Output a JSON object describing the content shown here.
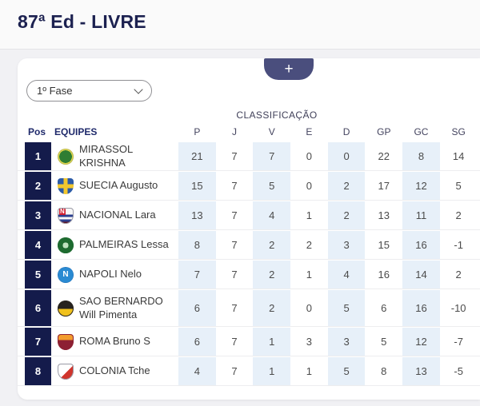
{
  "page": {
    "title": "87ª Ed - LIVRE"
  },
  "toolbar": {
    "add_button_label": "+",
    "phase_select_value": "1º Fase"
  },
  "table": {
    "caption": "CLASSIFICAÇÃO",
    "columns": [
      "Pos",
      "EQUIPES",
      "P",
      "J",
      "V",
      "E",
      "D",
      "GP",
      "GC",
      "SG"
    ],
    "rows": [
      {
        "pos": "1",
        "team": "MIRASSOL KRISHNA",
        "stats": [
          "21",
          "7",
          "7",
          "0",
          "0",
          "22",
          "8",
          "14"
        ],
        "crest": {
          "shape": "circle",
          "css_background": "radial-gradient(circle at 50% 50%, #2f7d33 0 56%, #e3d94b 56% 100%)",
          "border": "#b9b95a"
        }
      },
      {
        "pos": "2",
        "team": "SUECIA Augusto",
        "stats": [
          "15",
          "7",
          "5",
          "0",
          "2",
          "17",
          "12",
          "5"
        ],
        "crest": {
          "shape": "shield",
          "css_background": "linear-gradient(to right, rgba(0,0,0,0) 0 38%, #f2c72e 38% 62%, rgba(0,0,0,0) 62%), linear-gradient(to bottom, rgba(0,0,0,0) 0 38%, #f2c72e 38% 62%, rgba(0,0,0,0) 62%), #2c5ba8"
        }
      },
      {
        "pos": "3",
        "team": "NACIONAL Lara",
        "stats": [
          "13",
          "7",
          "4",
          "1",
          "2",
          "13",
          "11",
          "2"
        ],
        "crest": {
          "shape": "shield",
          "css_background": "linear-gradient(to bottom, #f7f7f7 0 42%, #2b3f8f 42% 58%, #f7f7f7 58% 72%, #2b3f8f 72% 88%, #5d1020 88%)",
          "border": "#9a9aa6",
          "letter": "N",
          "letter_color": "#ffffff",
          "letter_bg": "#d01e2f"
        }
      },
      {
        "pos": "4",
        "team": "PALMEIRAS Lessa",
        "stats": [
          "8",
          "7",
          "2",
          "2",
          "3",
          "15",
          "16",
          "-1"
        ],
        "crest": {
          "shape": "circle",
          "css_background": "radial-gradient(circle at 50% 50%, #bfe3bf 0 26%, #1e6b30 26%)",
          "border": "#1e6b30"
        }
      },
      {
        "pos": "5",
        "team": "NAPOLI Nelo",
        "stats": [
          "7",
          "7",
          "2",
          "1",
          "4",
          "16",
          "14",
          "2"
        ],
        "crest": {
          "shape": "circle",
          "css_background": "radial-gradient(circle at 50% 50%, #2a8ad2 0 68%, #1460a8 68%)",
          "letter": "N",
          "letter_color": "#ffffff"
        }
      },
      {
        "pos": "6",
        "team": "SAO BERNARDO Will Pimenta",
        "stats": [
          "6",
          "7",
          "2",
          "0",
          "5",
          "6",
          "16",
          "-10"
        ],
        "crest": {
          "shape": "circle",
          "css_background": "linear-gradient(to bottom, #26221f 0 52%, #f0c11c 52%)",
          "border": "#26221f"
        }
      },
      {
        "pos": "7",
        "team": "ROMA Bruno S",
        "stats": [
          "6",
          "7",
          "1",
          "3",
          "3",
          "5",
          "12",
          "-7"
        ],
        "crest": {
          "shape": "shield",
          "css_background": "linear-gradient(to bottom, #f39c2d 0 38%, #8d2033 38%)",
          "border": "#8d2033"
        }
      },
      {
        "pos": "8",
        "team": "COLONIA Tche",
        "stats": [
          "4",
          "7",
          "1",
          "1",
          "5",
          "8",
          "13",
          "-5"
        ],
        "crest": {
          "shape": "shield",
          "css_background": "linear-gradient(to bottom right, #ffffff 0 55%, #d0342c 55%)",
          "border": "#9a9aa6"
        }
      }
    ]
  },
  "colors": {
    "title_text": "#1c2150",
    "position_badge": "#141b4b",
    "add_tab": "#4a4e7d",
    "highlight_column": "#e7f0f9",
    "page_background": "#f1f1f4",
    "card_background": "#ffffff"
  }
}
